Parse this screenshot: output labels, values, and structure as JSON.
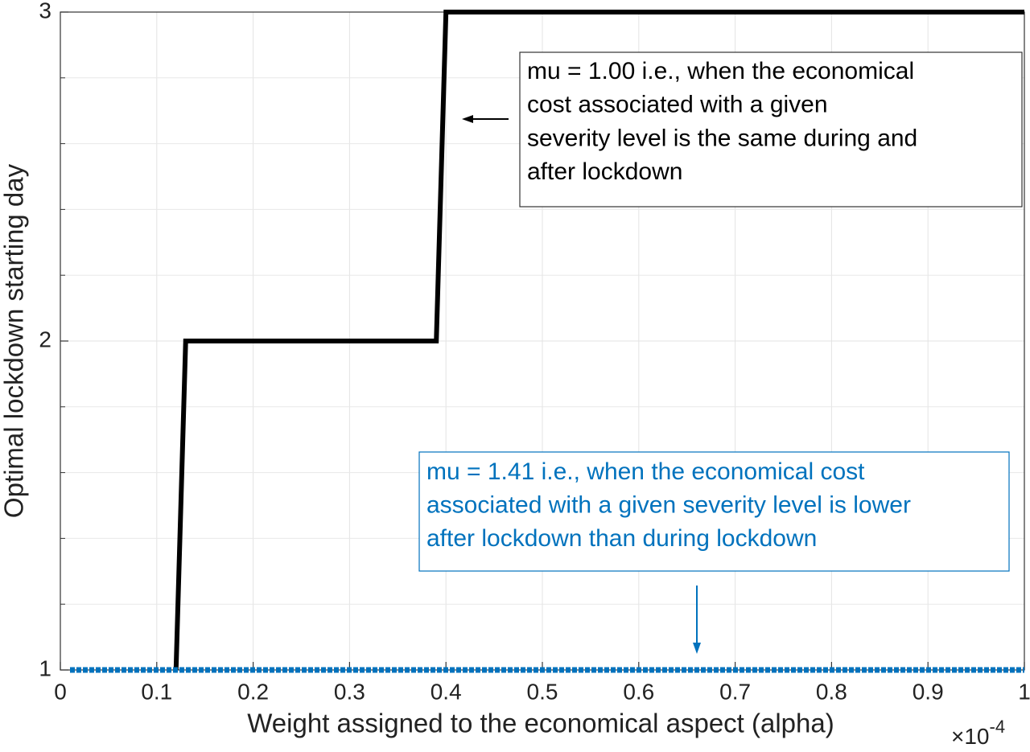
{
  "chart_data": {
    "type": "line",
    "xlabel": "Weight assigned to the economical aspect (alpha)",
    "ylabel": "Optimal lockdown starting day",
    "x_multiplier": {
      "base": "×10",
      "exponent": "-4"
    },
    "xlim": [
      0,
      1
    ],
    "ylim": [
      1,
      3
    ],
    "xticks": [
      0,
      0.1,
      0.2,
      0.3,
      0.4,
      0.5,
      0.6,
      0.7,
      0.8,
      0.9,
      1
    ],
    "yticks": [
      1,
      2,
      3
    ],
    "yminorticks": [
      1.2,
      1.4,
      1.6,
      1.8,
      2.2,
      2.4,
      2.6,
      2.8
    ],
    "grid": true,
    "series": [
      {
        "color": "#000000",
        "x": [
          0.12,
          0.13,
          0.39,
          0.4,
          1
        ],
        "values": [
          1,
          2,
          2,
          3,
          3
        ]
      },
      {
        "color": "#0072BD",
        "x": [
          0.01,
          1
        ],
        "values": [
          1,
          1
        ]
      }
    ],
    "annotations": [
      {
        "color": "#000000",
        "lines": [
          "mu = 1.00 i.e., when the economical",
          "cost associated with a given",
          "severity level is the same during and",
          "after lockdown"
        ]
      },
      {
        "color": "#0072BD",
        "lines": [
          "mu = 1.41 i.e., when the economical cost",
          "associated with a given severity level is lower",
          "after lockdown than during lockdown"
        ]
      }
    ]
  }
}
